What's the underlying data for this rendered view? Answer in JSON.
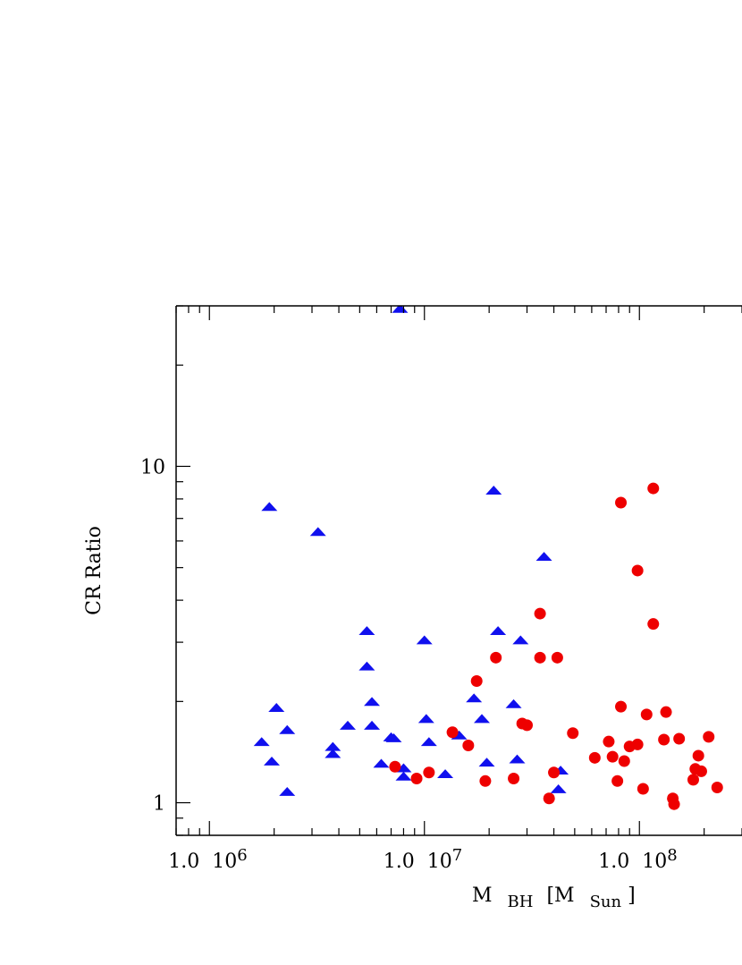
{
  "chart_data": {
    "type": "scatter",
    "title": "",
    "xlabel": "M BH [M Sun]",
    "xlabel_parts": {
      "main": "M",
      "sub1": "BH",
      "open": "[M",
      "sub2": "Sun",
      "close": "]"
    },
    "ylabel": "CR Ratio",
    "x_scale": "log",
    "y_scale": "log",
    "xlim": [
      700000,
      300000000
    ],
    "ylim": [
      0.8,
      30
    ],
    "grid": false,
    "x_tick_labels": [
      {
        "x": 1000000,
        "coef": "1.0",
        "base": "10",
        "exp": "6"
      },
      {
        "x": 10000000,
        "coef": "1.0",
        "base": "10",
        "exp": "7"
      },
      {
        "x": 100000000,
        "coef": "1.0",
        "base": "10",
        "exp": "8"
      }
    ],
    "y_tick_labels": [
      {
        "y": 1,
        "label": "1"
      },
      {
        "y": 10,
        "label": "10"
      }
    ],
    "colors": {
      "blue_series": "#1010ee",
      "red_series": "#ee0000",
      "axis": "#000000"
    },
    "series": [
      {
        "marker": "triangle",
        "color": "#1010ee",
        "points": [
          [
            1750000,
            1.52
          ],
          [
            1900000,
            7.6
          ],
          [
            1950000,
            1.33
          ],
          [
            2050000,
            1.92
          ],
          [
            2300000,
            1.08
          ],
          [
            2300000,
            1.65
          ],
          [
            3200000,
            6.4
          ],
          [
            3750000,
            1.47
          ],
          [
            3750000,
            1.4
          ],
          [
            4400000,
            1.7
          ],
          [
            5400000,
            3.25
          ],
          [
            5400000,
            2.55
          ],
          [
            5700000,
            2.0
          ],
          [
            5700000,
            1.7
          ],
          [
            6300000,
            1.31
          ],
          [
            7000000,
            1.57
          ],
          [
            7200000,
            1.56
          ],
          [
            7700000,
            29.5
          ],
          [
            8000000,
            1.27
          ],
          [
            8000000,
            1.2
          ],
          [
            10000000,
            3.05
          ],
          [
            10200000,
            1.78
          ],
          [
            10500000,
            1.52
          ],
          [
            12500000,
            1.22
          ],
          [
            14500000,
            1.59
          ],
          [
            17000000,
            2.05
          ],
          [
            18500000,
            1.78
          ],
          [
            19500000,
            1.32
          ],
          [
            21000000,
            8.5
          ],
          [
            22000000,
            3.25
          ],
          [
            26000000,
            1.97
          ],
          [
            27000000,
            1.35
          ],
          [
            28000000,
            3.05
          ],
          [
            36000000,
            5.4
          ],
          [
            42000000,
            1.1
          ],
          [
            43000000,
            1.25
          ]
        ]
      },
      {
        "marker": "circle",
        "color": "#ee0000",
        "points": [
          [
            7300000,
            1.28
          ],
          [
            9200000,
            1.18
          ],
          [
            10500000,
            1.23
          ],
          [
            13500000,
            1.62
          ],
          [
            16000000,
            1.48
          ],
          [
            17500000,
            2.3
          ],
          [
            19200000,
            1.16
          ],
          [
            21500000,
            2.7
          ],
          [
            26000000,
            1.18
          ],
          [
            28500000,
            1.72
          ],
          [
            30000000,
            1.7
          ],
          [
            34500000,
            3.65
          ],
          [
            34500000,
            2.7
          ],
          [
            38000000,
            1.03
          ],
          [
            40000000,
            1.23
          ],
          [
            41500000,
            2.7
          ],
          [
            49000000,
            1.61
          ],
          [
            62000000,
            1.36
          ],
          [
            72000000,
            1.52
          ],
          [
            75000000,
            1.37
          ],
          [
            79000000,
            1.16
          ],
          [
            82000000,
            7.8
          ],
          [
            82000000,
            1.93
          ],
          [
            85000000,
            1.33
          ],
          [
            90000000,
            1.47
          ],
          [
            98000000,
            4.9
          ],
          [
            98000000,
            1.49
          ],
          [
            104000000,
            1.1
          ],
          [
            108000000,
            1.83
          ],
          [
            116000000,
            8.6
          ],
          [
            116000000,
            3.4
          ],
          [
            130000000,
            1.54
          ],
          [
            133000000,
            1.86
          ],
          [
            143000000,
            1.03
          ],
          [
            145000000,
            0.99
          ],
          [
            153000000,
            1.55
          ],
          [
            178000000,
            1.17
          ],
          [
            182000000,
            1.26
          ],
          [
            188000000,
            1.38
          ],
          [
            194000000,
            1.24
          ],
          [
            210000000,
            1.57
          ],
          [
            230000000,
            1.11
          ]
        ]
      }
    ]
  }
}
